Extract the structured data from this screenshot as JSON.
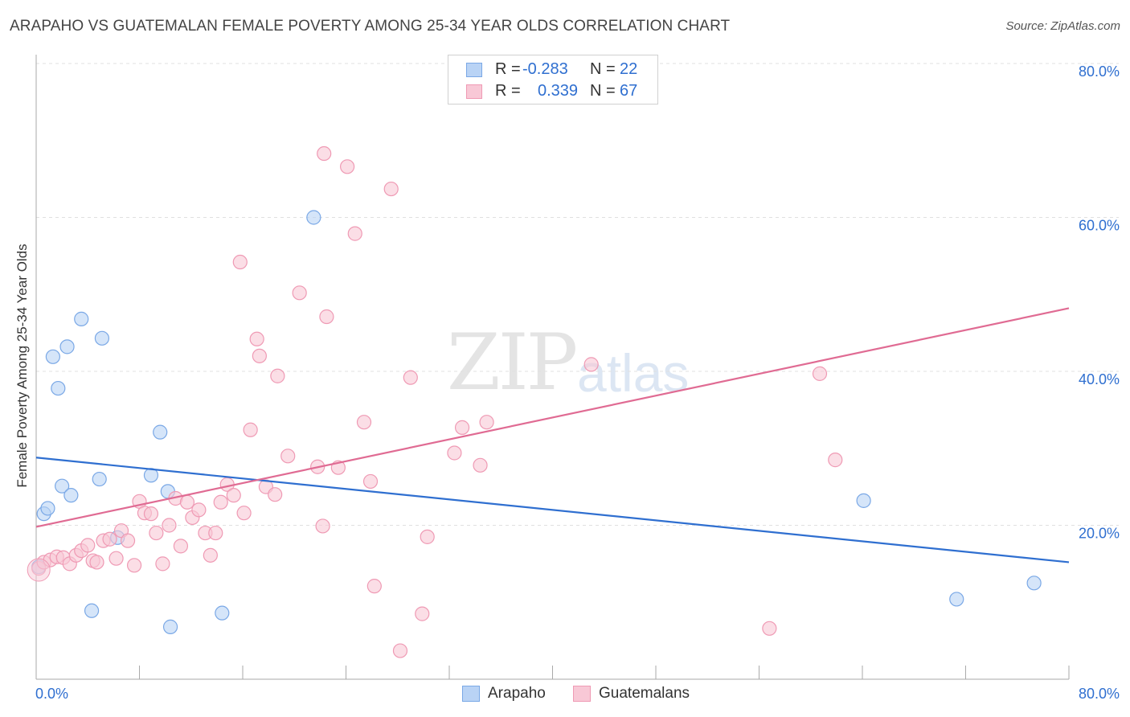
{
  "title": "ARAPAHO VS GUATEMALAN FEMALE POVERTY AMONG 25-34 YEAR OLDS CORRELATION CHART",
  "source": "Source: ZipAtlas.com",
  "watermark": {
    "zip": "ZIP",
    "atlas": "atlas"
  },
  "legend": {
    "rows": [
      {
        "r_label": "R =",
        "r_value": "-0.283",
        "n_label": "N =",
        "n_value": "22",
        "fill": "#b9d3f5",
        "stroke": "#7aa8e6"
      },
      {
        "r_label": "R =",
        "r_value": "0.339",
        "n_label": "N =",
        "n_value": "67",
        "fill": "#f8c8d6",
        "stroke": "#ef9ab4"
      }
    ]
  },
  "bottom_legend": [
    {
      "label": "Arapaho",
      "fill": "#b9d3f5",
      "stroke": "#7aa8e6"
    },
    {
      "label": "Guatemalans",
      "fill": "#f8c8d6",
      "stroke": "#ef9ab4"
    }
  ],
  "chart_data": {
    "type": "scatter",
    "title": "ARAPAHO VS GUATEMALAN FEMALE POVERTY AMONG 25-34 YEAR OLDS CORRELATION CHART",
    "xlabel": "",
    "ylabel": "Female Poverty Among 25-34 Year Olds",
    "xlim": [
      0,
      80
    ],
    "ylim": [
      0,
      80
    ],
    "x_tick_labels": [
      "0.0%",
      "80.0%"
    ],
    "y_tick_labels": [
      "20.0%",
      "40.0%",
      "60.0%",
      "80.0%"
    ],
    "y_ticks": [
      20,
      40,
      60,
      80
    ],
    "grid": true,
    "legend_position": "top-center",
    "series": [
      {
        "name": "Arapaho",
        "color": "#b9d3f5",
        "stroke": "#7aa8e6",
        "line_color": "#2f6fd0",
        "trend": [
          [
            0,
            28.8
          ],
          [
            80,
            15.2
          ]
        ],
        "points": [
          [
            0.2,
            14.6
          ],
          [
            0.6,
            21.5
          ],
          [
            0.9,
            22.2
          ],
          [
            1.3,
            41.9
          ],
          [
            1.7,
            37.8
          ],
          [
            2.0,
            25.1
          ],
          [
            2.4,
            43.2
          ],
          [
            2.7,
            23.9
          ],
          [
            3.5,
            46.8
          ],
          [
            4.3,
            8.9
          ],
          [
            4.9,
            26.0
          ],
          [
            5.1,
            44.3
          ],
          [
            6.3,
            18.4
          ],
          [
            8.9,
            26.5
          ],
          [
            9.6,
            32.1
          ],
          [
            10.2,
            24.4
          ],
          [
            10.4,
            6.8
          ],
          [
            14.4,
            8.6
          ],
          [
            21.5,
            60.0
          ],
          [
            64.1,
            23.2
          ],
          [
            71.3,
            10.4
          ],
          [
            77.3,
            12.5
          ]
        ]
      },
      {
        "name": "Guatemalans",
        "color": "#f8c8d6",
        "stroke": "#ef9ab4",
        "line_color": "#e06b93",
        "trend": [
          [
            0,
            19.8
          ],
          [
            80,
            48.2
          ]
        ],
        "points": [
          [
            0.2,
            14.4
          ],
          [
            0.6,
            15.2
          ],
          [
            1.1,
            15.5
          ],
          [
            1.6,
            15.9
          ],
          [
            2.1,
            15.8
          ],
          [
            2.6,
            15.0
          ],
          [
            3.1,
            16.1
          ],
          [
            3.5,
            16.7
          ],
          [
            4.0,
            17.4
          ],
          [
            4.4,
            15.4
          ],
          [
            4.7,
            15.2
          ],
          [
            5.2,
            18.0
          ],
          [
            5.7,
            18.2
          ],
          [
            6.2,
            15.7
          ],
          [
            6.6,
            19.3
          ],
          [
            7.1,
            18.0
          ],
          [
            7.6,
            14.8
          ],
          [
            8.0,
            23.1
          ],
          [
            8.4,
            21.6
          ],
          [
            8.9,
            21.5
          ],
          [
            9.3,
            19.0
          ],
          [
            9.8,
            15.0
          ],
          [
            10.3,
            20.0
          ],
          [
            10.8,
            23.5
          ],
          [
            11.2,
            17.3
          ],
          [
            11.7,
            23.0
          ],
          [
            12.1,
            21.0
          ],
          [
            12.6,
            22.0
          ],
          [
            13.1,
            19.0
          ],
          [
            13.5,
            16.1
          ],
          [
            13.9,
            19.0
          ],
          [
            14.3,
            23.0
          ],
          [
            14.8,
            25.3
          ],
          [
            15.3,
            23.9
          ],
          [
            15.8,
            54.2
          ],
          [
            16.1,
            21.6
          ],
          [
            16.6,
            32.4
          ],
          [
            17.1,
            44.2
          ],
          [
            17.3,
            42.0
          ],
          [
            17.8,
            25.0
          ],
          [
            18.5,
            24.0
          ],
          [
            18.7,
            39.4
          ],
          [
            19.5,
            29.0
          ],
          [
            20.4,
            50.2
          ],
          [
            21.8,
            27.6
          ],
          [
            22.2,
            19.9
          ],
          [
            22.5,
            47.1
          ],
          [
            23.4,
            27.5
          ],
          [
            22.3,
            68.3
          ],
          [
            24.1,
            66.6
          ],
          [
            24.7,
            57.9
          ],
          [
            25.4,
            33.4
          ],
          [
            25.9,
            25.7
          ],
          [
            26.2,
            12.1
          ],
          [
            27.5,
            63.7
          ],
          [
            28.2,
            3.7
          ],
          [
            29.0,
            39.2
          ],
          [
            29.9,
            8.5
          ],
          [
            30.3,
            18.5
          ],
          [
            32.4,
            29.4
          ],
          [
            33.0,
            32.7
          ],
          [
            34.4,
            27.8
          ],
          [
            34.9,
            33.4
          ],
          [
            43.0,
            40.9
          ],
          [
            56.8,
            6.6
          ],
          [
            60.7,
            39.7
          ],
          [
            61.9,
            28.5
          ]
        ]
      }
    ]
  }
}
